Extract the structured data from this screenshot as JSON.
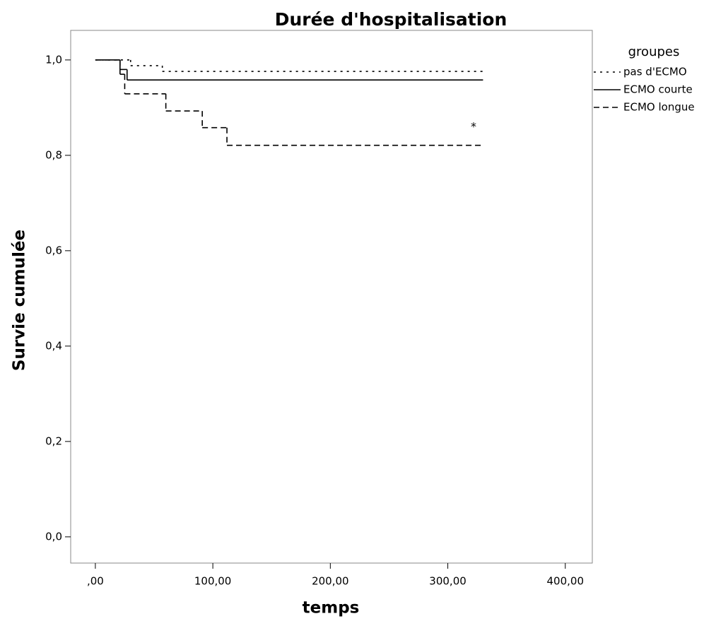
{
  "chart_data": {
    "type": "step",
    "title": "Durée d'hospitalisation",
    "xlabel": "temps",
    "ylabel": "Survie cumulée",
    "legend_title": "groupes",
    "annotation": "*",
    "xlim": [
      -21,
      423
    ],
    "ylim": [
      -0.055,
      1.062
    ],
    "xticks": [
      {
        "value": 0,
        "label": ",00"
      },
      {
        "value": 100,
        "label": "100,00"
      },
      {
        "value": 200,
        "label": "200,00"
      },
      {
        "value": 300,
        "label": "300,00"
      },
      {
        "value": 400,
        "label": "400,00"
      }
    ],
    "yticks": [
      {
        "value": 0,
        "label": "0,0"
      },
      {
        "value": 0.2,
        "label": "0,2"
      },
      {
        "value": 0.4,
        "label": "0,4"
      },
      {
        "value": 0.6,
        "label": "0,6"
      },
      {
        "value": 0.8,
        "label": "0,8"
      },
      {
        "value": 1.0,
        "label": "1,0"
      }
    ],
    "series": [
      {
        "name": "pas d'ECMO",
        "color": "#000000",
        "dash": "3,6",
        "x": [
          0,
          30,
          57,
          330
        ],
        "values": [
          1.0,
          0.988,
          0.976,
          0.976
        ]
      },
      {
        "name": "ECMO courte",
        "color": "#000000",
        "dash": "none",
        "x": [
          0,
          21,
          27,
          330
        ],
        "values": [
          1.0,
          0.98,
          0.958,
          0.958
        ]
      },
      {
        "name": "ECMO longue",
        "color": "#000000",
        "dash": "8,5",
        "x": [
          0,
          21,
          25,
          60,
          91,
          112,
          330
        ],
        "values": [
          1.0,
          0.97,
          0.929,
          0.893,
          0.858,
          0.821,
          0.821
        ]
      }
    ]
  }
}
